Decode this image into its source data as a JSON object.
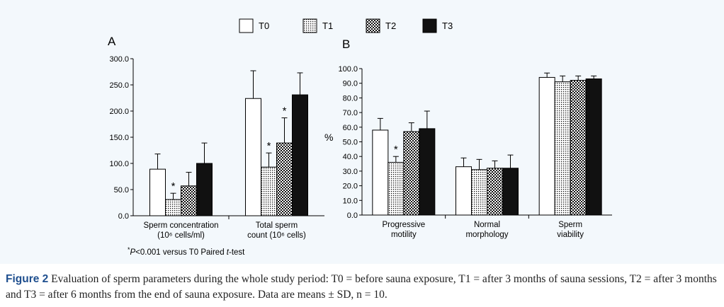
{
  "legend": {
    "items": [
      {
        "label": "T0",
        "pattern": "white"
      },
      {
        "label": "T1",
        "pattern": "dots"
      },
      {
        "label": "T2",
        "pattern": "checker"
      },
      {
        "label": "T3",
        "pattern": "black"
      }
    ]
  },
  "chart_data": [
    {
      "type": "bar",
      "panel": "A",
      "title": "A",
      "ylabel": "",
      "ylim": [
        0,
        300
      ],
      "yticks": [
        "0.0",
        "50.0",
        "100.0",
        "150.0",
        "200.0",
        "250.0",
        "300.0"
      ],
      "categories": [
        [
          "Sperm concentration",
          "(10⁶ cells/ml)"
        ],
        [
          "Total sperm",
          "count (10⁶ cells)"
        ]
      ],
      "series": [
        {
          "name": "T0",
          "values": [
            89,
            224
          ],
          "sd": [
            29,
            53
          ]
        },
        {
          "name": "T1",
          "values": [
            31,
            93
          ],
          "sd": [
            12,
            27
          ],
          "significant": [
            true,
            true
          ]
        },
        {
          "name": "T2",
          "values": [
            57,
            139
          ],
          "sd": [
            26,
            48
          ],
          "significant": [
            false,
            true
          ]
        },
        {
          "name": "T3",
          "values": [
            100,
            231
          ],
          "sd": [
            39,
            42
          ]
        }
      ],
      "note": {
        "prefix": "*",
        "p": "P",
        "mid": "<0.001 versus T0 Paired ",
        "test": "t",
        "suffix": "-test"
      }
    },
    {
      "type": "bar",
      "panel": "B",
      "title": "B",
      "ylabel": "%",
      "ylim": [
        0,
        100
      ],
      "yticks": [
        "0.0",
        "10.0",
        "20.0",
        "30.0",
        "40.0",
        "50.0",
        "60.0",
        "70.0",
        "80.0",
        "90.0",
        "100.0"
      ],
      "categories": [
        [
          "Progressive",
          "motility"
        ],
        [
          "Normal",
          "morphology"
        ],
        [
          "Sperm",
          "viability"
        ]
      ],
      "series": [
        {
          "name": "T0",
          "values": [
            58,
            33,
            94
          ],
          "sd": [
            8,
            6,
            3
          ]
        },
        {
          "name": "T1",
          "values": [
            36,
            31,
            91
          ],
          "sd": [
            4,
            7,
            4
          ],
          "significant": [
            true,
            false,
            false
          ]
        },
        {
          "name": "T2",
          "values": [
            57,
            32,
            92
          ],
          "sd": [
            6,
            5,
            3
          ]
        },
        {
          "name": "T3",
          "values": [
            59,
            32,
            93
          ],
          "sd": [
            12,
            9,
            2
          ]
        }
      ]
    }
  ],
  "caption": {
    "label": "Figure 2",
    "text": "Evaluation of sperm parameters during the whole study period: T0 = before sauna exposure, T1 = after 3 months of sauna sessions, T2 = after 3 months and T3 = after 6 months from the end of sauna exposure. Data are means ± SD, n = 10."
  }
}
